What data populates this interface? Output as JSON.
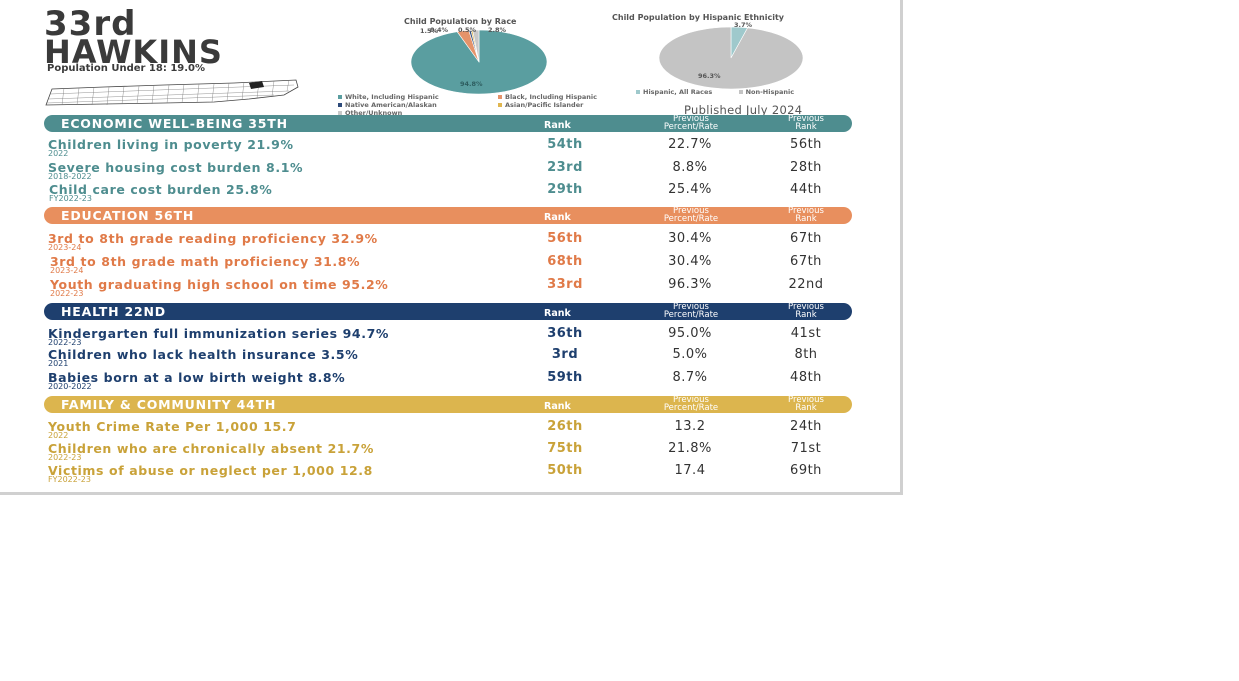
{
  "header": {
    "rank": "33rd",
    "county": "HAWKINS",
    "population": "Population Under 18: 19.0%"
  },
  "race_pie": {
    "title": "Child Population by Race",
    "slices": [
      {
        "label": "White, Including Hispanic",
        "value": 94.8,
        "color": "#5a9ea0"
      },
      {
        "label": "Black, Including Hispanic",
        "value": 2.8,
        "color": "#e5936a"
      },
      {
        "label": "Native American/Alaskan",
        "value": 0.5,
        "color": "#2d4a7a"
      },
      {
        "label": "Asian/Pacific Islander",
        "value": 0.4,
        "color": "#e0b64f"
      },
      {
        "label": "Other/Unknown",
        "value": 1.5,
        "color": "#c9c9c9"
      }
    ],
    "labels": [
      "1.5%",
      "0.4%",
      "0.5%",
      "2.8%",
      "94.8%"
    ]
  },
  "ethnicity_pie": {
    "title": "Child Population by Hispanic Ethnicity",
    "slices": [
      {
        "label": "Hispanic, All Races",
        "value": 3.7,
        "color": "#9fc9cc"
      },
      {
        "label": "Non-Hispanic",
        "value": 96.3,
        "color": "#c4c4c4"
      }
    ],
    "labels": [
      "3.7%",
      "96.3%"
    ]
  },
  "published": "Published July 2024",
  "column_headers": {
    "rank": "Rank",
    "prev_pct_1": "Previous",
    "prev_pct_2": "Percent/Rate",
    "prev_rank_1": "Previous",
    "prev_rank_2": "Rank"
  },
  "sections": [
    {
      "title": "ECONOMIC WELL-BEING   35TH",
      "color": "#4e8d8f",
      "text_color": "#4e8d8f",
      "rows": [
        {
          "label": "Children living in poverty   21.9%",
          "year": "2022",
          "rank": "54th",
          "prev": "22.7%",
          "prev_rank": "56th"
        },
        {
          "label": "Severe housing cost burden   8.1%",
          "year": "2018-2022",
          "rank": "23rd",
          "prev": "8.8%",
          "prev_rank": "28th"
        },
        {
          "label": "Child care cost burden   25.8%",
          "year": "FY2022-23",
          "rank": "29th",
          "prev": "25.4%",
          "prev_rank": "44th"
        }
      ]
    },
    {
      "title": "EDUCATION   56TH",
      "color": "#e88f5e",
      "text_color": "#e07a48",
      "rows": [
        {
          "label": "3rd to 8th grade reading proficiency   32.9%",
          "year": "2023-24",
          "rank": "56th",
          "prev": "30.4%",
          "prev_rank": "67th"
        },
        {
          "label": "3rd to 8th grade math proficiency   31.8%",
          "year": "2023-24",
          "rank": "68th",
          "prev": "30.4%",
          "prev_rank": "67th"
        },
        {
          "label": "Youth graduating high school on time   95.2%",
          "year": "2022-23",
          "rank": "33rd",
          "prev": "96.3%",
          "prev_rank": "22nd"
        }
      ]
    },
    {
      "title": "HEALTH   22ND",
      "color": "#1e3f6e",
      "text_color": "#1e3f6e",
      "rows": [
        {
          "label": "Kindergarten full  immunization series   94.7%",
          "year": "2022-23",
          "rank": "36th",
          "prev": "95.0%",
          "prev_rank": "41st"
        },
        {
          "label": "Children who lack health insurance    3.5%",
          "year": "2021",
          "rank": "3rd",
          "prev": "5.0%",
          "prev_rank": "8th"
        },
        {
          "label": "Babies born at a low birth weight   8.8%",
          "year": "2020-2022",
          "rank": "59th",
          "prev": "8.7%",
          "prev_rank": "48th"
        }
      ]
    },
    {
      "title": "FAMILY & COMMUNITY    44TH",
      "color": "#dcb54e",
      "text_color": "#c9a239",
      "rows": [
        {
          "label": "Youth Crime Rate Per 1,000   15.7",
          "year": "2022",
          "rank": "26th",
          "prev": "13.2",
          "prev_rank": "24th"
        },
        {
          "label": "Children who are chronically absent   21.7%",
          "year": "2022-23",
          "rank": "75th",
          "prev": "21.8%",
          "prev_rank": "71st"
        },
        {
          "label": "Victims of abuse or neglect per 1,000   12.8",
          "year": "FY2022-23",
          "rank": "50th",
          "prev": "17.4",
          "prev_rank": "69th"
        }
      ]
    }
  ]
}
